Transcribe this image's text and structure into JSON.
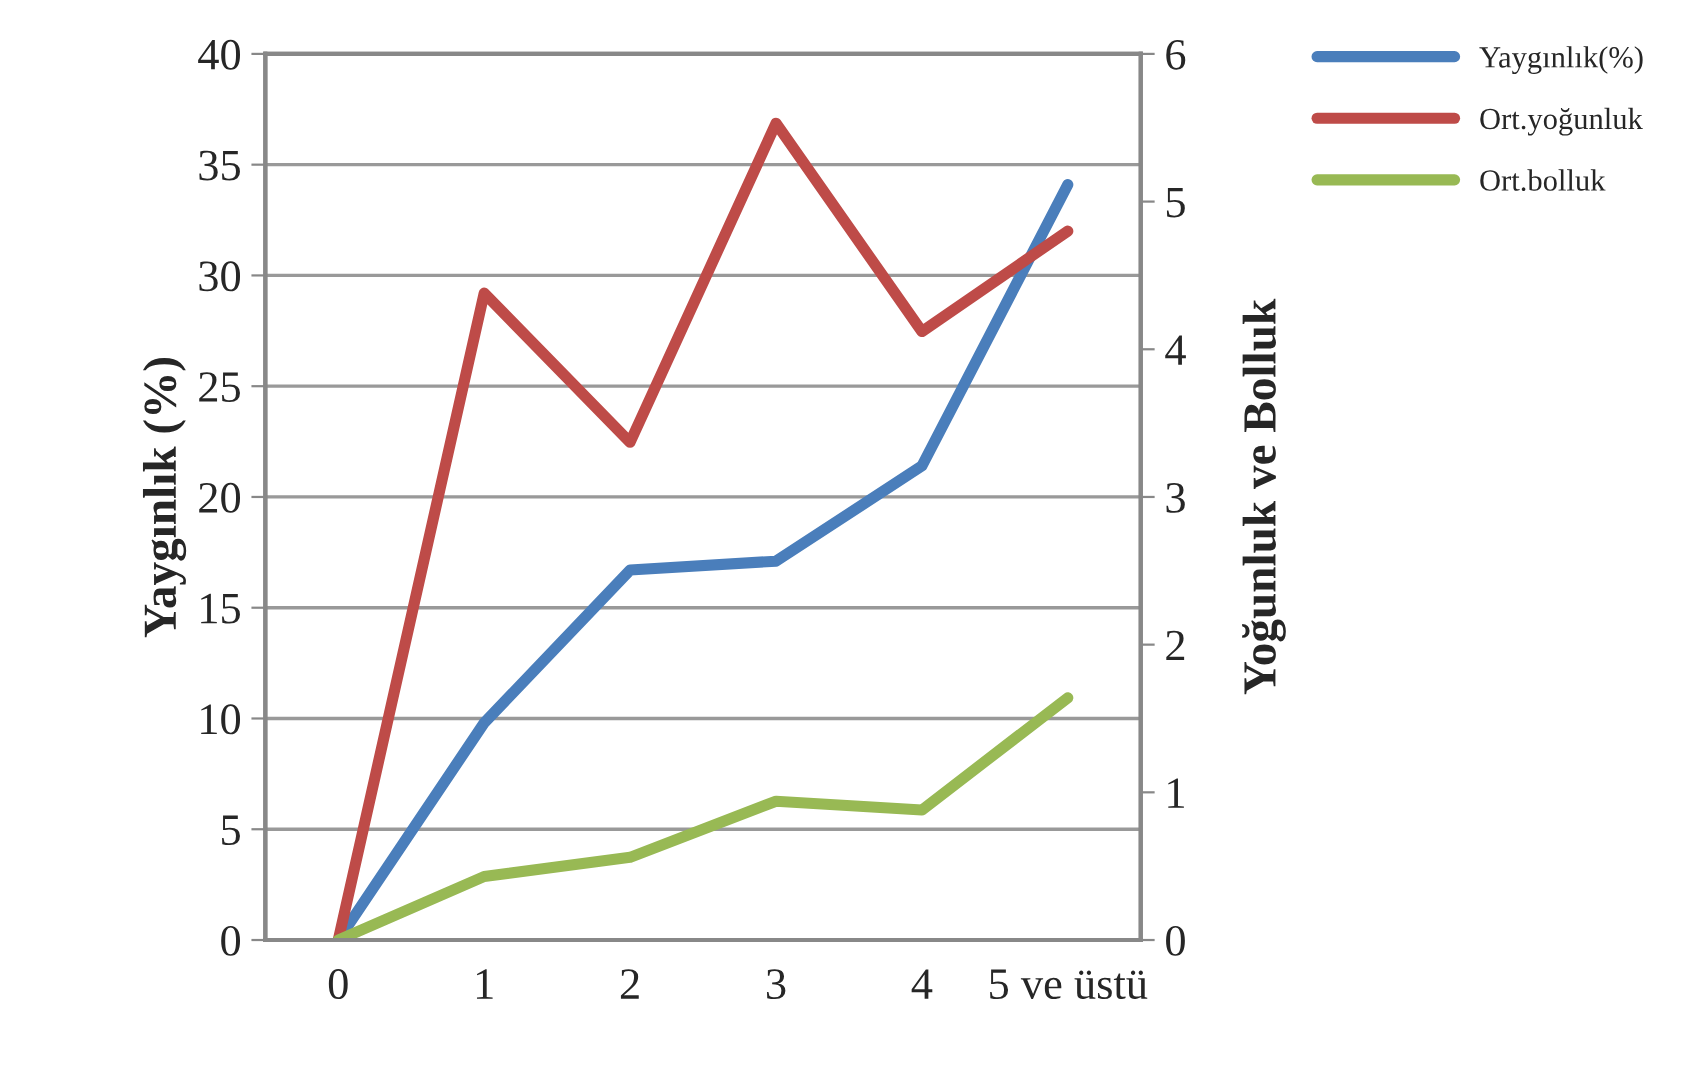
{
  "chart_data": {
    "type": "line",
    "ylabel": "Yaygınlık (%)",
    "y2label": "Yoğunluk ve Bolluk",
    "categories": [
      "0",
      "1",
      "2",
      "3",
      "4",
      "5 ve üstü"
    ],
    "series": [
      {
        "name": "Yaygınlık(%)",
        "color": "#4a7ebb",
        "values": [
          0,
          9.8,
          16.7,
          17.1,
          21.4,
          34.1
        ]
      },
      {
        "name": "Ort.yoğunluk",
        "color": "#be4b48",
        "axis": "y2",
        "values": [
          0,
          4.38,
          3.37,
          5.53,
          4.12,
          4.8
        ]
      },
      {
        "name": "Ort.bolluk",
        "color": "#98b954",
        "axis": "y2",
        "values": [
          0,
          0.43,
          0.56,
          0.94,
          0.88,
          1.64
        ]
      }
    ],
    "ylim": [
      0,
      40
    ],
    "yticks": [
      0,
      5,
      10,
      15,
      20,
      25,
      30,
      35,
      40
    ],
    "y2lim": [
      0,
      6
    ],
    "y2ticks": [
      0,
      1,
      2,
      3,
      4,
      5,
      6
    ],
    "grid": "y",
    "legend": "top right",
    "marker": "none",
    "line_style": "solid"
  }
}
